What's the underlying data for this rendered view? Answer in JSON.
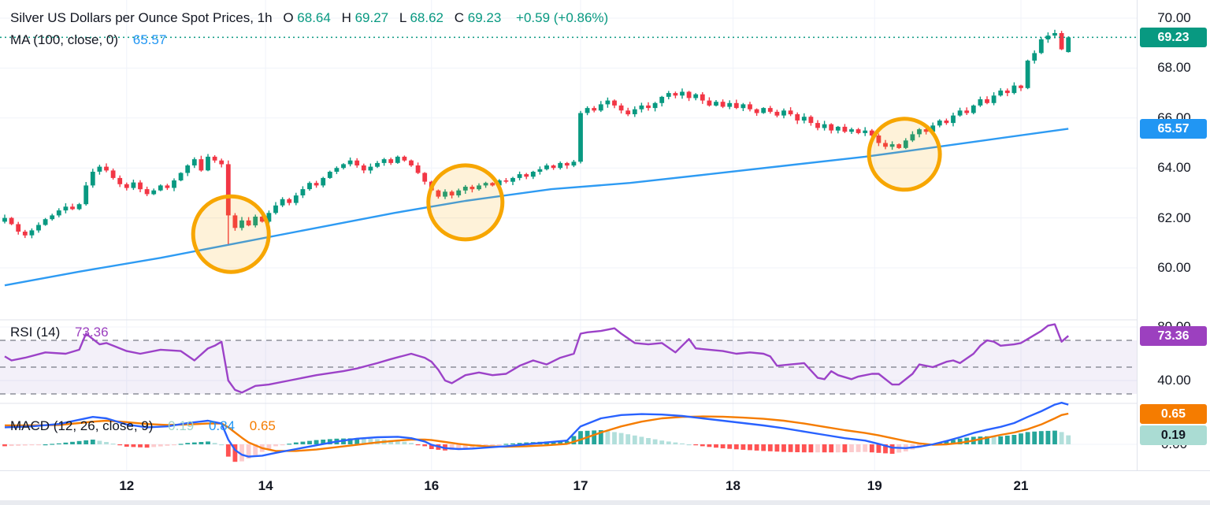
{
  "title_row": {
    "symbol": "Silver US Dollars per Ounce Spot Prices, 1h",
    "o_label": "O",
    "o": "68.64",
    "h_label": "H",
    "h": "69.27",
    "l_label": "L",
    "l": "68.62",
    "c_label": "C",
    "c": "69.23",
    "change": "+0.59 (+0.86%)"
  },
  "ma_row": {
    "label": "MA (100, close, 0)",
    "value": "65.57"
  },
  "rsi_row": {
    "label": "RSI (14)",
    "value": "73.36"
  },
  "macd_row": {
    "label": "MACD (12, 26, close, 9)",
    "hist": "0.19",
    "macd": "0.84",
    "signal": "0.65"
  },
  "price_axis": {
    "price_labels": [
      {
        "text": "70.00",
        "value": 70
      },
      {
        "text": "68.00",
        "value": 68
      },
      {
        "text": "66.00",
        "value": 66
      },
      {
        "text": "64.00",
        "value": 64
      },
      {
        "text": "62.00",
        "value": 62
      },
      {
        "text": "60.00",
        "value": 60
      }
    ],
    "rsi_labels": [
      {
        "text": "80.00",
        "value": 80
      },
      {
        "text": "40.00",
        "value": 40
      }
    ],
    "macd_labels": [
      {
        "text": "0.00",
        "value": 0
      }
    ],
    "badges": [
      {
        "name": "last-price-badge",
        "text": "69.23",
        "value": 69.23,
        "scale": "price",
        "bg": "#089981",
        "fg": "#ffffff"
      },
      {
        "name": "ma-value-badge",
        "text": "65.57",
        "value": 65.57,
        "scale": "price",
        "bg": "#2196f3",
        "fg": "#ffffff"
      },
      {
        "name": "rsi-value-badge",
        "text": "73.36",
        "value": 73.36,
        "scale": "rsi",
        "bg": "#9c40bf",
        "fg": "#ffffff"
      },
      {
        "name": "macd-signal-badge",
        "text": "0.65",
        "value": 0.65,
        "scale": "macd",
        "bg": "#f57c00",
        "fg": "#ffffff"
      },
      {
        "name": "macd-hist-badge",
        "text": "0.19",
        "value": 0.19,
        "scale": "macd",
        "bg": "#aadcd3",
        "fg": "#131722"
      }
    ]
  },
  "time_axis": {
    "ticks": [
      {
        "label": "12",
        "i": 18
      },
      {
        "label": "14",
        "i": 38.5
      },
      {
        "label": "16",
        "i": 63
      },
      {
        "label": "17",
        "i": 85
      },
      {
        "label": "18",
        "i": 107.5
      },
      {
        "label": "19",
        "i": 128.4
      },
      {
        "label": "21",
        "i": 150
      }
    ]
  },
  "chart_data": {
    "type": "candlestick",
    "title": "Silver US Dollars per Ounce Spot Prices, 1h",
    "last_bar": {
      "open": 68.64,
      "high": 69.27,
      "low": 68.62,
      "close": 69.23,
      "change": "+0.59 (+0.86%)"
    },
    "overlays": {
      "ma": {
        "period": 100,
        "source": "close",
        "offset": 0,
        "last": 65.57
      },
      "rsi": {
        "period": 14,
        "last": 73.36,
        "bands": [
          70,
          50,
          30
        ]
      },
      "macd": {
        "fast": 12,
        "slow": 26,
        "source": "close",
        "signal": 9,
        "last_hist": 0.19,
        "last_macd": 0.84,
        "last_signal": 0.65
      }
    },
    "price_ylim": [
      58.8,
      70.7
    ],
    "price_gridlines": [
      70,
      68,
      66,
      64,
      62,
      60
    ],
    "current_price": 69.23,
    "closes": [
      62.0,
      61.75,
      61.45,
      61.3,
      61.5,
      61.72,
      61.95,
      62.1,
      62.3,
      62.45,
      62.35,
      62.55,
      63.3,
      63.85,
      64.05,
      63.9,
      63.6,
      63.35,
      63.2,
      63.42,
      63.15,
      62.95,
      63.1,
      63.3,
      63.2,
      63.5,
      63.8,
      64.1,
      64.35,
      63.9,
      64.45,
      64.3,
      64.15,
      62.1,
      61.6,
      61.9,
      61.7,
      62.05,
      61.85,
      62.2,
      62.5,
      62.75,
      62.6,
      62.9,
      63.15,
      63.4,
      63.3,
      63.6,
      63.85,
      64.0,
      64.15,
      64.3,
      64.1,
      63.9,
      64.05,
      64.2,
      64.35,
      64.2,
      64.45,
      64.3,
      64.1,
      63.8,
      63.45,
      63.1,
      62.85,
      63.05,
      62.9,
      63.1,
      63.25,
      63.15,
      63.3,
      63.4,
      63.3,
      63.5,
      63.45,
      63.6,
      63.75,
      63.65,
      63.85,
      63.95,
      64.1,
      64.0,
      64.2,
      64.1,
      64.25,
      66.2,
      66.4,
      66.3,
      66.55,
      66.7,
      66.5,
      66.3,
      66.15,
      66.35,
      66.5,
      66.4,
      66.6,
      66.85,
      67.0,
      66.9,
      67.05,
      66.8,
      66.95,
      66.7,
      66.5,
      66.65,
      66.45,
      66.6,
      66.4,
      66.55,
      66.35,
      66.2,
      66.4,
      66.25,
      66.1,
      66.3,
      66.15,
      65.9,
      66.05,
      65.8,
      65.6,
      65.75,
      65.5,
      65.65,
      65.45,
      65.55,
      65.4,
      65.5,
      65.3,
      65.0,
      64.85,
      64.95,
      64.8,
      65.1,
      65.35,
      65.55,
      65.45,
      65.7,
      65.9,
      65.8,
      66.1,
      66.3,
      66.2,
      66.5,
      66.75,
      66.6,
      66.9,
      67.1,
      67.0,
      67.3,
      67.2,
      68.3,
      68.6,
      69.15,
      69.3,
      69.4,
      68.75,
      69.23
    ],
    "candle_overrides": {
      "33": {
        "h": 64.3,
        "l": 60.95
      },
      "85": {
        "l": 64.18
      },
      "157": {
        "o": 68.64,
        "h": 69.27,
        "l": 68.62
      }
    },
    "ma_points": [
      [
        0,
        59.3
      ],
      [
        11,
        59.85
      ],
      [
        23,
        60.4
      ],
      [
        33.5,
        60.95
      ],
      [
        46,
        61.6
      ],
      [
        57.5,
        62.2
      ],
      [
        68,
        62.68
      ],
      [
        80.7,
        63.15
      ],
      [
        92.3,
        63.4
      ],
      [
        104,
        63.75
      ],
      [
        115.5,
        64.1
      ],
      [
        127,
        64.45
      ],
      [
        132.7,
        64.66
      ],
      [
        144.5,
        65.1
      ],
      [
        157,
        65.57
      ]
    ],
    "rsi_points": [
      [
        0,
        58
      ],
      [
        1,
        55
      ],
      [
        3,
        57
      ],
      [
        6,
        61
      ],
      [
        9,
        60
      ],
      [
        11,
        63
      ],
      [
        12,
        75
      ],
      [
        13,
        71
      ],
      [
        14,
        67
      ],
      [
        15,
        68
      ],
      [
        16,
        66
      ],
      [
        18,
        62
      ],
      [
        20,
        60
      ],
      [
        23,
        63
      ],
      [
        26,
        62
      ],
      [
        28,
        55
      ],
      [
        30,
        64
      ],
      [
        31,
        66
      ],
      [
        32,
        69
      ],
      [
        33,
        40
      ],
      [
        34,
        33
      ],
      [
        35,
        31
      ],
      [
        37,
        36
      ],
      [
        39,
        37
      ],
      [
        42,
        40
      ],
      [
        46,
        44
      ],
      [
        50,
        47
      ],
      [
        52,
        49
      ],
      [
        55,
        53
      ],
      [
        57,
        56
      ],
      [
        60,
        60
      ],
      [
        62,
        57
      ],
      [
        63,
        54
      ],
      [
        64,
        48
      ],
      [
        65,
        40
      ],
      [
        66,
        38
      ],
      [
        68,
        44
      ],
      [
        70,
        46
      ],
      [
        72,
        44
      ],
      [
        74,
        45
      ],
      [
        76,
        51
      ],
      [
        78,
        55
      ],
      [
        80,
        52
      ],
      [
        82,
        57
      ],
      [
        84,
        60
      ],
      [
        85,
        75
      ],
      [
        86,
        76
      ],
      [
        88,
        77
      ],
      [
        90,
        79
      ],
      [
        91,
        75
      ],
      [
        93,
        68
      ],
      [
        95,
        67
      ],
      [
        97,
        68
      ],
      [
        99,
        61
      ],
      [
        100,
        66
      ],
      [
        101,
        71
      ],
      [
        102,
        64
      ],
      [
        104,
        63
      ],
      [
        106,
        62
      ],
      [
        108,
        60
      ],
      [
        110,
        61
      ],
      [
        112,
        60
      ],
      [
        113,
        58
      ],
      [
        114,
        51
      ],
      [
        116,
        52
      ],
      [
        118,
        53
      ],
      [
        120,
        42
      ],
      [
        121,
        41
      ],
      [
        122,
        47
      ],
      [
        123,
        44
      ],
      [
        125,
        41
      ],
      [
        126,
        43
      ],
      [
        128,
        45
      ],
      [
        129,
        45
      ],
      [
        131,
        37
      ],
      [
        132,
        37
      ],
      [
        134,
        45
      ],
      [
        135,
        52
      ],
      [
        137,
        50
      ],
      [
        139,
        54
      ],
      [
        140,
        55
      ],
      [
        141,
        53
      ],
      [
        143,
        60
      ],
      [
        144,
        66
      ],
      [
        145,
        70
      ],
      [
        146,
        69
      ],
      [
        147,
        66
      ],
      [
        149,
        67
      ],
      [
        150,
        68
      ],
      [
        151,
        71
      ],
      [
        152,
        74
      ],
      [
        153,
        77
      ],
      [
        154,
        81
      ],
      [
        155,
        82
      ],
      [
        156,
        69
      ],
      [
        157,
        73.36
      ]
    ],
    "rsi_dashed_levels": [
      70,
      50,
      30
    ],
    "rsi_band": [
      70,
      30
    ],
    "macd_line_points": [
      [
        0,
        0.36
      ],
      [
        4,
        0.38
      ],
      [
        8,
        0.43
      ],
      [
        11,
        0.52
      ],
      [
        13,
        0.58
      ],
      [
        15,
        0.55
      ],
      [
        18,
        0.42
      ],
      [
        21,
        0.36
      ],
      [
        24,
        0.38
      ],
      [
        27,
        0.45
      ],
      [
        30,
        0.5
      ],
      [
        32,
        0.44
      ],
      [
        33,
        0.1
      ],
      [
        34,
        -0.12
      ],
      [
        35,
        -0.22
      ],
      [
        36,
        -0.26
      ],
      [
        38,
        -0.24
      ],
      [
        40,
        -0.18
      ],
      [
        43,
        -0.1
      ],
      [
        46,
        -0.02
      ],
      [
        49,
        0.06
      ],
      [
        52,
        0.12
      ],
      [
        55,
        0.15
      ],
      [
        58,
        0.16
      ],
      [
        60,
        0.13
      ],
      [
        62,
        0.06
      ],
      [
        63,
        -0.01
      ],
      [
        65,
        -0.08
      ],
      [
        67,
        -0.1
      ],
      [
        69,
        -0.09
      ],
      [
        71,
        -0.07
      ],
      [
        74,
        -0.04
      ],
      [
        77,
        0.0
      ],
      [
        80,
        0.04
      ],
      [
        83,
        0.08
      ],
      [
        85,
        0.38
      ],
      [
        88,
        0.55
      ],
      [
        91,
        0.62
      ],
      [
        94,
        0.64
      ],
      [
        97,
        0.63
      ],
      [
        100,
        0.6
      ],
      [
        103,
        0.55
      ],
      [
        106,
        0.5
      ],
      [
        109,
        0.45
      ],
      [
        112,
        0.4
      ],
      [
        115,
        0.34
      ],
      [
        118,
        0.27
      ],
      [
        121,
        0.2
      ],
      [
        124,
        0.13
      ],
      [
        127,
        0.08
      ],
      [
        129,
        0.01
      ],
      [
        131,
        -0.07
      ],
      [
        133,
        -0.08
      ],
      [
        135,
        -0.05
      ],
      [
        137,
        0.0
      ],
      [
        139,
        0.07
      ],
      [
        141,
        0.15
      ],
      [
        143,
        0.24
      ],
      [
        145,
        0.31
      ],
      [
        147,
        0.37
      ],
      [
        149,
        0.45
      ],
      [
        151,
        0.58
      ],
      [
        153,
        0.7
      ],
      [
        155,
        0.84
      ],
      [
        156,
        0.88
      ],
      [
        157,
        0.84
      ]
    ],
    "signal_line_points": [
      [
        0,
        0.4
      ],
      [
        4,
        0.4
      ],
      [
        8,
        0.41
      ],
      [
        11,
        0.45
      ],
      [
        13,
        0.48
      ],
      [
        15,
        0.5
      ],
      [
        18,
        0.47
      ],
      [
        21,
        0.43
      ],
      [
        24,
        0.41
      ],
      [
        27,
        0.42
      ],
      [
        30,
        0.44
      ],
      [
        32,
        0.44
      ],
      [
        33,
        0.36
      ],
      [
        34,
        0.25
      ],
      [
        35,
        0.14
      ],
      [
        36,
        0.04
      ],
      [
        38,
        -0.08
      ],
      [
        40,
        -0.14
      ],
      [
        43,
        -0.14
      ],
      [
        46,
        -0.11
      ],
      [
        49,
        -0.06
      ],
      [
        52,
        -0.01
      ],
      [
        55,
        0.04
      ],
      [
        58,
        0.08
      ],
      [
        60,
        0.1
      ],
      [
        62,
        0.1
      ],
      [
        63,
        0.09
      ],
      [
        65,
        0.05
      ],
      [
        67,
        0.01
      ],
      [
        69,
        -0.02
      ],
      [
        71,
        -0.04
      ],
      [
        74,
        -0.05
      ],
      [
        77,
        -0.04
      ],
      [
        80,
        -0.02
      ],
      [
        83,
        0.01
      ],
      [
        85,
        0.1
      ],
      [
        88,
        0.25
      ],
      [
        91,
        0.38
      ],
      [
        94,
        0.48
      ],
      [
        97,
        0.55
      ],
      [
        100,
        0.58
      ],
      [
        103,
        0.59
      ],
      [
        106,
        0.585
      ],
      [
        109,
        0.565
      ],
      [
        112,
        0.54
      ],
      [
        115,
        0.5
      ],
      [
        118,
        0.44
      ],
      [
        121,
        0.37
      ],
      [
        124,
        0.3
      ],
      [
        127,
        0.24
      ],
      [
        129,
        0.19
      ],
      [
        131,
        0.13
      ],
      [
        133,
        0.07
      ],
      [
        135,
        0.02
      ],
      [
        137,
        -0.01
      ],
      [
        139,
        0.0
      ],
      [
        141,
        0.03
      ],
      [
        143,
        0.08
      ],
      [
        145,
        0.14
      ],
      [
        147,
        0.2
      ],
      [
        149,
        0.25
      ],
      [
        151,
        0.32
      ],
      [
        153,
        0.42
      ],
      [
        155,
        0.55
      ],
      [
        156,
        0.62
      ],
      [
        157,
        0.65
      ]
    ],
    "highlight_circles": [
      {
        "i": 33.4,
        "p": 61.35,
        "r": 48
      },
      {
        "i": 68.0,
        "p": 62.62,
        "r": 47
      },
      {
        "i": 132.8,
        "p": 64.55,
        "r": 45
      }
    ],
    "colors": {
      "up": "#089981",
      "down": "#f23645",
      "ma": "#2e9bf3",
      "rsi": "#9c42c8",
      "rsi_band_fill": "rgba(126,87,194,0.09)",
      "dashed": "#787b86",
      "macd_line": "#2962ff",
      "signal_line": "#f57c00",
      "hist_pos_grow": "#26a69a",
      "hist_pos_fall": "#b2dfdb",
      "hist_neg_fall": "#ff5252",
      "hist_neg_grow": "#fccbcd",
      "grid": "#f0f3fa",
      "separator": "#e0e3eb",
      "circle": "#f7a600",
      "circle_fill": "rgba(247,166,0,0.15)",
      "current_line": "#089981"
    }
  }
}
